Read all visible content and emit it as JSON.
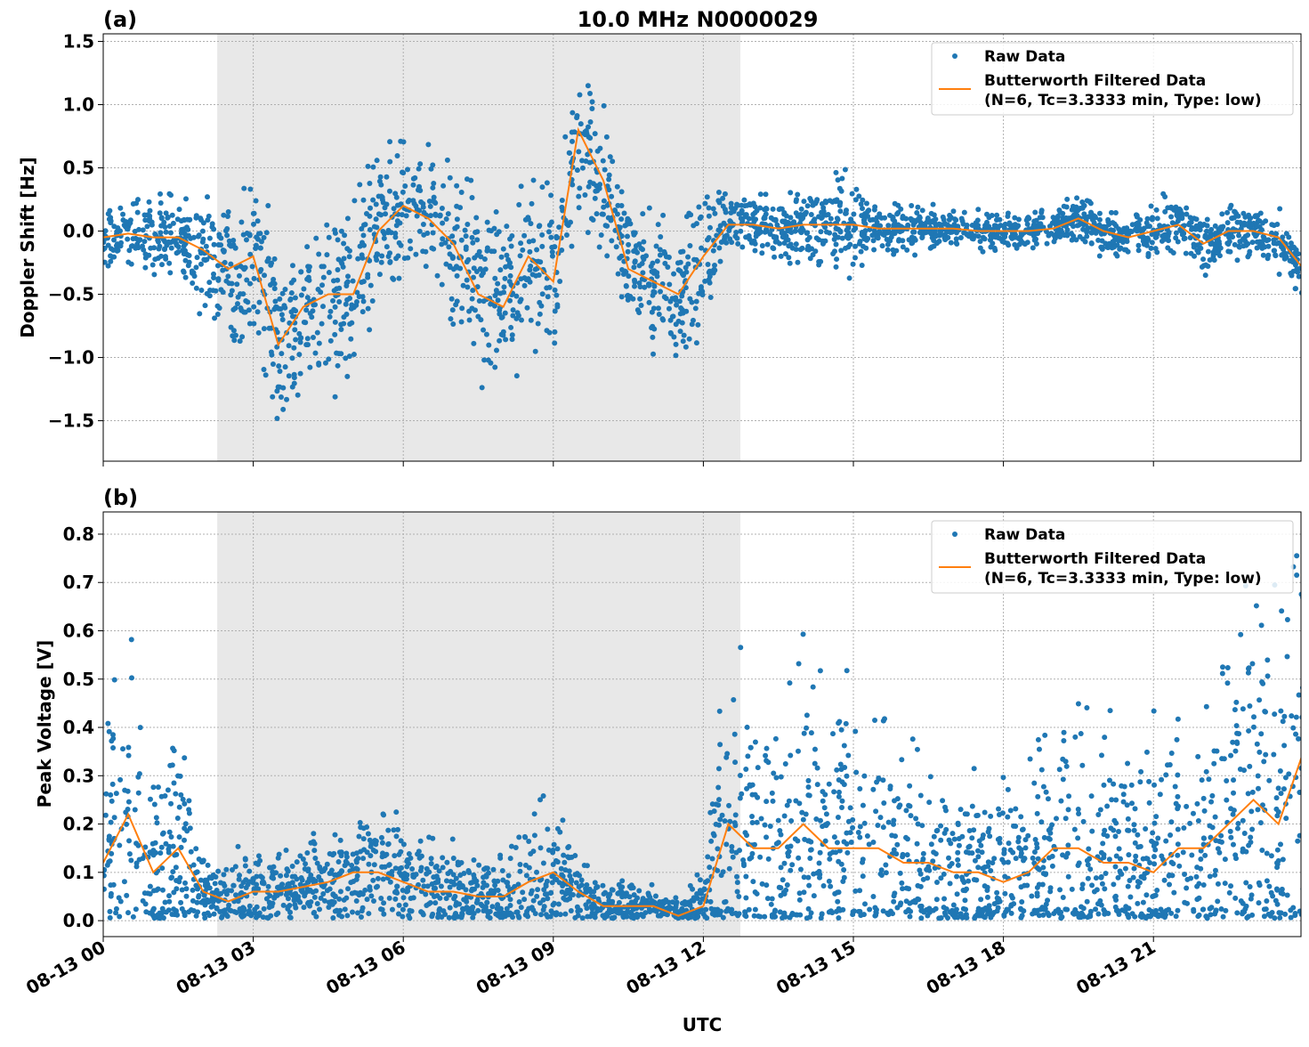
{
  "title": "10.0 MHz N0000029",
  "colors": {
    "raw": "#1f77b4",
    "filtered": "#ff7f0e",
    "shade": "#e8e8e8",
    "grid": "#b0b0b0"
  },
  "chart_data": [
    {
      "type": "scatter",
      "panel_label": "(a)",
      "title": "10.0 MHz N0000029",
      "xlabel": "",
      "ylabel": "Doppler Shift [Hz]",
      "xlim_hours": [
        0,
        23.95
      ],
      "ylim": [
        -1.82,
        1.56
      ],
      "yticks": [
        -1.5,
        -1.0,
        -0.5,
        0.0,
        0.5,
        1.0,
        1.5
      ],
      "ytick_labels": [
        "−1.5",
        "−1.0",
        "−0.5",
        "0.0",
        "0.5",
        "1.0",
        "1.5"
      ],
      "shaded_region_hours": [
        2.28,
        12.74
      ],
      "grid": true,
      "legend_placement": "top-right",
      "legend": [
        "Raw Data",
        "Butterworth Filtered Data",
        "(N=6, Tc=3.3333 min, Type: low)"
      ],
      "x_hours": [
        0,
        0.5,
        1,
        1.5,
        2,
        2.5,
        3,
        3.5,
        4,
        4.5,
        5,
        5.5,
        6,
        6.5,
        7,
        7.5,
        8,
        8.5,
        9,
        9.5,
        10,
        10.5,
        11,
        11.5,
        12,
        12.5,
        13,
        13.5,
        14,
        14.5,
        15,
        15.5,
        16,
        16.5,
        17,
        17.5,
        18,
        18.5,
        19,
        19.5,
        20,
        20.5,
        21,
        21.5,
        22,
        22.5,
        23,
        23.5,
        24
      ],
      "series": [
        {
          "name": "Butterworth Filtered Data",
          "values": [
            -0.05,
            -0.02,
            -0.05,
            -0.05,
            -0.15,
            -0.3,
            -0.2,
            -0.9,
            -0.6,
            -0.5,
            -0.5,
            0.0,
            0.2,
            0.1,
            -0.1,
            -0.5,
            -0.6,
            -0.2,
            -0.4,
            0.8,
            0.4,
            -0.3,
            -0.4,
            -0.5,
            -0.2,
            0.05,
            0.05,
            0.02,
            0.05,
            0.05,
            0.05,
            0.02,
            0.02,
            0.02,
            0.02,
            0.0,
            0.0,
            0.0,
            0.02,
            0.1,
            0.0,
            -0.05,
            0.0,
            0.05,
            -0.1,
            0.0,
            0.0,
            -0.05,
            -0.3
          ]
        },
        {
          "name": "Raw Data",
          "spread": [
            0.15,
            0.15,
            0.2,
            0.2,
            0.3,
            0.4,
            0.45,
            0.45,
            0.45,
            0.45,
            0.45,
            0.4,
            0.4,
            0.4,
            0.4,
            0.45,
            0.5,
            0.4,
            0.4,
            0.4,
            0.35,
            0.3,
            0.35,
            0.35,
            0.35,
            0.15,
            0.15,
            0.15,
            0.2,
            0.2,
            0.25,
            0.12,
            0.12,
            0.12,
            0.1,
            0.1,
            0.1,
            0.1,
            0.1,
            0.12,
            0.12,
            0.12,
            0.15,
            0.15,
            0.15,
            0.12,
            0.12,
            0.15,
            0.15
          ]
        }
      ]
    },
    {
      "type": "scatter",
      "panel_label": "(b)",
      "xlabel": "UTC",
      "ylabel": "Peak Voltage [V]",
      "xlim_hours": [
        0,
        23.95
      ],
      "ylim": [
        -0.033,
        0.846
      ],
      "yticks": [
        0.0,
        0.1,
        0.2,
        0.3,
        0.4,
        0.5,
        0.6,
        0.7,
        0.8
      ],
      "ytick_labels": [
        "0.0",
        "0.1",
        "0.2",
        "0.3",
        "0.4",
        "0.5",
        "0.6",
        "0.7",
        "0.8"
      ],
      "xticks_hours": [
        0,
        3,
        6,
        9,
        12,
        15,
        18,
        21
      ],
      "xtick_labels": [
        "08-13 00",
        "08-13 03",
        "08-13 06",
        "08-13 09",
        "08-13 12",
        "08-13 15",
        "08-13 18",
        "08-13 21"
      ],
      "shaded_region_hours": [
        2.28,
        12.74
      ],
      "grid": true,
      "legend_placement": "top-right",
      "legend": [
        "Raw Data",
        "Butterworth Filtered Data",
        "(N=6, Tc=3.3333 min, Type: low)"
      ],
      "x_hours": [
        0,
        0.5,
        1,
        1.5,
        2,
        2.5,
        3,
        3.5,
        4,
        4.5,
        5,
        5.5,
        6,
        6.5,
        7,
        7.5,
        8,
        8.5,
        9,
        9.5,
        10,
        10.5,
        11,
        11.5,
        12,
        12.5,
        13,
        13.5,
        14,
        14.5,
        15,
        15.5,
        16,
        16.5,
        17,
        17.5,
        18,
        18.5,
        19,
        19.5,
        20,
        20.5,
        21,
        21.5,
        22,
        22.5,
        23,
        23.5,
        24
      ],
      "series": [
        {
          "name": "Butterworth Filtered Data",
          "values": [
            0.12,
            0.22,
            0.1,
            0.15,
            0.06,
            0.04,
            0.06,
            0.06,
            0.07,
            0.08,
            0.1,
            0.1,
            0.08,
            0.06,
            0.06,
            0.05,
            0.05,
            0.08,
            0.1,
            0.06,
            0.03,
            0.03,
            0.03,
            0.01,
            0.03,
            0.2,
            0.15,
            0.15,
            0.2,
            0.15,
            0.15,
            0.15,
            0.12,
            0.12,
            0.1,
            0.1,
            0.08,
            0.1,
            0.15,
            0.15,
            0.12,
            0.12,
            0.1,
            0.15,
            0.15,
            0.2,
            0.25,
            0.2,
            0.35
          ]
        },
        {
          "name": "Raw Data",
          "spread": [
            0.15,
            0.25,
            0.12,
            0.18,
            0.05,
            0.05,
            0.07,
            0.05,
            0.05,
            0.07,
            0.08,
            0.08,
            0.07,
            0.06,
            0.06,
            0.05,
            0.06,
            0.1,
            0.1,
            0.05,
            0.03,
            0.03,
            0.03,
            0.02,
            0.05,
            0.25,
            0.2,
            0.2,
            0.3,
            0.2,
            0.2,
            0.2,
            0.15,
            0.15,
            0.15,
            0.13,
            0.13,
            0.13,
            0.2,
            0.2,
            0.17,
            0.17,
            0.17,
            0.2,
            0.2,
            0.25,
            0.3,
            0.3,
            0.4
          ]
        }
      ]
    }
  ]
}
